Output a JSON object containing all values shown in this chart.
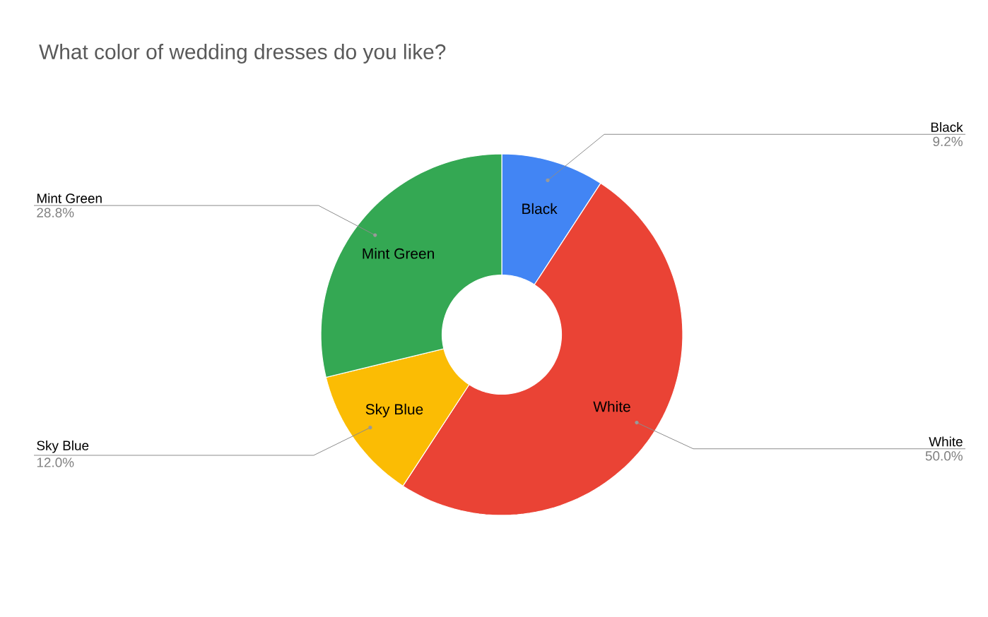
{
  "chart_data": {
    "type": "donut",
    "title": "What color of wedding dresses do you like?",
    "categories": [
      "Black",
      "White",
      "Sky Blue",
      "Mint Green"
    ],
    "values": [
      9.2,
      50.0,
      12.0,
      28.8
    ],
    "colors": [
      "#4285f4",
      "#ea4335",
      "#fbbc04",
      "#34a853"
    ],
    "value_labels": [
      "9.2%",
      "50.0%",
      "12.0%",
      "28.8%"
    ]
  }
}
